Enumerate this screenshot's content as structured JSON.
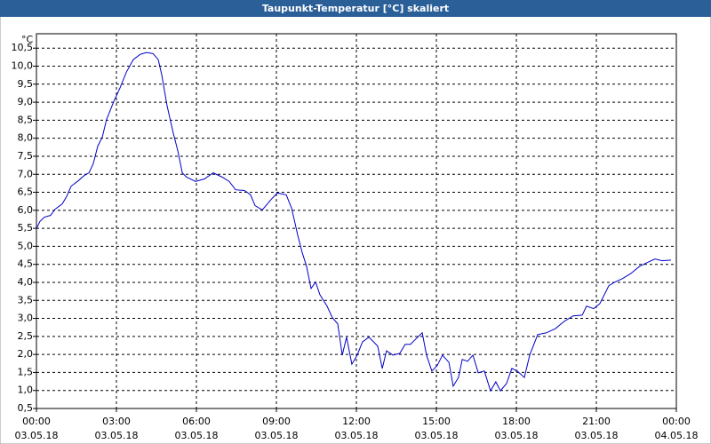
{
  "chart_data": {
    "type": "line",
    "title": "Taupunkt-Temperatur [°C] skaliert",
    "y_unit": "°C",
    "grid": true,
    "title_bar_color": "#2b5f97",
    "xlim": [
      0,
      24
    ],
    "ylim": [
      0.5,
      10.9
    ],
    "xticks": [
      {
        "value": 0,
        "label": "00:00",
        "date": "03.05.18"
      },
      {
        "value": 3,
        "label": "03:00",
        "date": "03.05.18"
      },
      {
        "value": 6,
        "label": "06:00",
        "date": "03.05.18"
      },
      {
        "value": 9,
        "label": "09:00",
        "date": "03.05.18"
      },
      {
        "value": 12,
        "label": "12:00",
        "date": "03.05.18"
      },
      {
        "value": 15,
        "label": "15:00",
        "date": "03.05.18"
      },
      {
        "value": 18,
        "label": "18:00",
        "date": "03.05.18"
      },
      {
        "value": 21,
        "label": "21:00",
        "date": "03.05.18"
      },
      {
        "value": 24,
        "label": "00:00",
        "date": "04.05.18"
      }
    ],
    "yticks": [
      {
        "value": 0.5,
        "label": "0,5"
      },
      {
        "value": 1,
        "label": "1,0"
      },
      {
        "value": 1.5,
        "label": "1,5"
      },
      {
        "value": 2,
        "label": "2,0"
      },
      {
        "value": 2.5,
        "label": "2,5"
      },
      {
        "value": 3,
        "label": "3,0"
      },
      {
        "value": 3.5,
        "label": "3,5"
      },
      {
        "value": 4,
        "label": "4,0"
      },
      {
        "value": 4.5,
        "label": "4,5"
      },
      {
        "value": 5,
        "label": "5,0"
      },
      {
        "value": 5.5,
        "label": "5,5"
      },
      {
        "value": 6,
        "label": "6,0"
      },
      {
        "value": 6.5,
        "label": "6,5"
      },
      {
        "value": 7,
        "label": "7,0"
      },
      {
        "value": 7.5,
        "label": "7,5"
      },
      {
        "value": 8,
        "label": "8,0"
      },
      {
        "value": 8.5,
        "label": "8,5"
      },
      {
        "value": 9,
        "label": "9,0"
      },
      {
        "value": 9.5,
        "label": "9,5"
      },
      {
        "value": 10,
        "label": "10,0"
      },
      {
        "value": 10.5,
        "label": "10,5"
      }
    ],
    "x": [
      0,
      0.13,
      0.3,
      0.53,
      0.7,
      0.97,
      1.13,
      1.3,
      1.57,
      1.8,
      1.97,
      2.13,
      2.3,
      2.47,
      2.63,
      2.9,
      3.13,
      3.37,
      3.63,
      3.9,
      4.13,
      4.37,
      4.57,
      4.7,
      4.9,
      5.13,
      5.3,
      5.47,
      5.63,
      5.97,
      6.3,
      6.63,
      6.97,
      7.23,
      7.47,
      7.8,
      8.03,
      8.2,
      8.47,
      8.8,
      9.03,
      9.37,
      9.57,
      9.8,
      9.97,
      10.13,
      10.3,
      10.47,
      10.63,
      10.9,
      11.1,
      11.3,
      11.47,
      11.63,
      11.83,
      12.03,
      12.23,
      12.47,
      12.8,
      12.97,
      13.13,
      13.37,
      13.63,
      13.83,
      14.03,
      14.23,
      14.47,
      14.63,
      14.83,
      15.03,
      15.23,
      15.47,
      15.63,
      15.83,
      15.97,
      16.17,
      16.37,
      16.57,
      16.8,
      17.03,
      17.23,
      17.4,
      17.63,
      17.83,
      18.03,
      18.3,
      18.5,
      18.8,
      19.13,
      19.47,
      19.8,
      20.13,
      20.47,
      20.63,
      20.9,
      21.13,
      21.47,
      21.7,
      21.97,
      22.3,
      22.63,
      22.97,
      23.2,
      23.47,
      23.8
    ],
    "series": [
      {
        "name": "Taupunkt-Temperatur",
        "color": "#0000c8",
        "values": [
          5.49,
          5.69,
          5.81,
          5.86,
          6.03,
          6.18,
          6.38,
          6.67,
          6.82,
          6.97,
          7.04,
          7.29,
          7.78,
          8.03,
          8.52,
          9.02,
          9.39,
          9.83,
          10.18,
          10.33,
          10.38,
          10.35,
          10.18,
          9.76,
          8.9,
          8.15,
          7.66,
          7.04,
          6.92,
          6.8,
          6.87,
          7.04,
          6.92,
          6.8,
          6.57,
          6.55,
          6.43,
          6.13,
          6.01,
          6.3,
          6.48,
          6.43,
          6.06,
          5.31,
          4.82,
          4.45,
          3.83,
          4.01,
          3.66,
          3.34,
          3.02,
          2.85,
          1.98,
          2.48,
          1.73,
          1.98,
          2.35,
          2.48,
          2.23,
          1.61,
          2.1,
          1.98,
          2.03,
          2.28,
          2.28,
          2.43,
          2.6,
          1.98,
          1.54,
          1.69,
          1.98,
          1.78,
          1.12,
          1.36,
          1.86,
          1.81,
          1.98,
          1.49,
          1.54,
          0.99,
          1.24,
          0.99,
          1.19,
          1.61,
          1.54,
          1.36,
          1.98,
          2.55,
          2.6,
          2.72,
          2.92,
          3.07,
          3.09,
          3.34,
          3.27,
          3.41,
          3.91,
          4.01,
          4.1,
          4.25,
          4.45,
          4.57,
          4.65,
          4.6,
          4.62
        ]
      }
    ]
  }
}
